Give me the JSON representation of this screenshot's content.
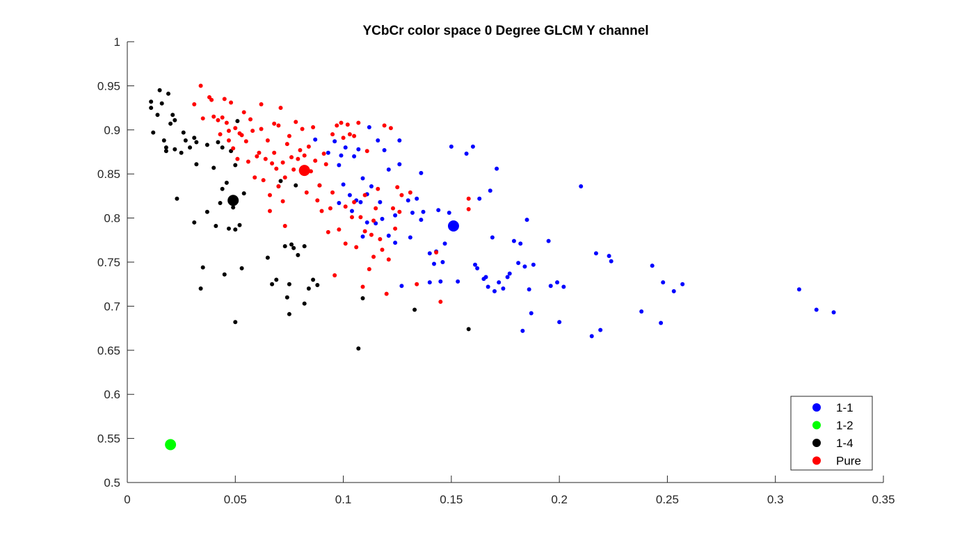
{
  "chart_data": {
    "type": "scatter",
    "title": "YCbCr color space 0 Degree GLCM Y channel",
    "xlabel": "",
    "ylabel": "",
    "xlim": [
      0,
      0.35
    ],
    "ylim": [
      0.5,
      1
    ],
    "x_ticks": [
      "0",
      "0.05",
      "0.1",
      "0.15",
      "0.2",
      "0.25",
      "0.3",
      "0.35"
    ],
    "y_ticks": [
      "0.5",
      "0.55",
      "0.6",
      "0.65",
      "0.7",
      "0.75",
      "0.8",
      "0.85",
      "0.9",
      "0.95",
      "1"
    ],
    "grid": false,
    "legend_position": "bottom-right",
    "series": [
      {
        "name": "1-1",
        "color": "#0000ff",
        "centroid": [
          0.151,
          0.791
        ],
        "points": [
          [
            0.087,
            0.889
          ],
          [
            0.093,
            0.874
          ],
          [
            0.096,
            0.887
          ],
          [
            0.098,
            0.86
          ],
          [
            0.099,
            0.871
          ],
          [
            0.101,
            0.88
          ],
          [
            0.105,
            0.87
          ],
          [
            0.107,
            0.878
          ],
          [
            0.109,
            0.845
          ],
          [
            0.112,
            0.903
          ],
          [
            0.116,
            0.888
          ],
          [
            0.119,
            0.877
          ],
          [
            0.121,
            0.855
          ],
          [
            0.126,
            0.888
          ],
          [
            0.126,
            0.861
          ],
          [
            0.13,
            0.82
          ],
          [
            0.132,
            0.806
          ],
          [
            0.134,
            0.822
          ],
          [
            0.136,
            0.851
          ],
          [
            0.14,
            0.76
          ],
          [
            0.142,
            0.748
          ],
          [
            0.144,
            0.809
          ],
          [
            0.147,
            0.771
          ],
          [
            0.149,
            0.806
          ],
          [
            0.15,
            0.881
          ],
          [
            0.153,
            0.728
          ],
          [
            0.157,
            0.873
          ],
          [
            0.16,
            0.881
          ],
          [
            0.161,
            0.747
          ],
          [
            0.162,
            0.743
          ],
          [
            0.163,
            0.822
          ],
          [
            0.165,
            0.731
          ],
          [
            0.166,
            0.733
          ],
          [
            0.167,
            0.722
          ],
          [
            0.168,
            0.831
          ],
          [
            0.169,
            0.778
          ],
          [
            0.17,
            0.717
          ],
          [
            0.171,
            0.856
          ],
          [
            0.172,
            0.727
          ],
          [
            0.174,
            0.72
          ],
          [
            0.176,
            0.733
          ],
          [
            0.177,
            0.737
          ],
          [
            0.179,
            0.774
          ],
          [
            0.181,
            0.749
          ],
          [
            0.182,
            0.771
          ],
          [
            0.183,
            0.672
          ],
          [
            0.184,
            0.745
          ],
          [
            0.185,
            0.798
          ],
          [
            0.186,
            0.719
          ],
          [
            0.187,
            0.692
          ],
          [
            0.188,
            0.747
          ],
          [
            0.195,
            0.774
          ],
          [
            0.196,
            0.723
          ],
          [
            0.199,
            0.727
          ],
          [
            0.2,
            0.682
          ],
          [
            0.202,
            0.722
          ],
          [
            0.21,
            0.836
          ],
          [
            0.215,
            0.666
          ],
          [
            0.217,
            0.76
          ],
          [
            0.219,
            0.673
          ],
          [
            0.223,
            0.757
          ],
          [
            0.224,
            0.751
          ],
          [
            0.238,
            0.694
          ],
          [
            0.243,
            0.746
          ],
          [
            0.247,
            0.681
          ],
          [
            0.248,
            0.727
          ],
          [
            0.253,
            0.717
          ],
          [
            0.257,
            0.725
          ],
          [
            0.311,
            0.719
          ],
          [
            0.319,
            0.696
          ],
          [
            0.327,
            0.693
          ],
          [
            0.104,
            0.808
          ],
          [
            0.108,
            0.818
          ],
          [
            0.111,
            0.795
          ],
          [
            0.115,
            0.794
          ],
          [
            0.117,
            0.818
          ],
          [
            0.121,
            0.78
          ],
          [
            0.124,
            0.803
          ],
          [
            0.127,
            0.723
          ],
          [
            0.136,
            0.798
          ],
          [
            0.137,
            0.807
          ],
          [
            0.14,
            0.727
          ],
          [
            0.143,
            0.762
          ],
          [
            0.145,
            0.728
          ],
          [
            0.146,
            0.75
          ],
          [
            0.124,
            0.772
          ],
          [
            0.118,
            0.799
          ],
          [
            0.106,
            0.82
          ],
          [
            0.109,
            0.779
          ],
          [
            0.113,
            0.836
          ],
          [
            0.1,
            0.838
          ],
          [
            0.103,
            0.826
          ],
          [
            0.098,
            0.817
          ],
          [
            0.111,
            0.827
          ],
          [
            0.131,
            0.778
          ]
        ]
      },
      {
        "name": "1-2",
        "color": "#00ff00",
        "centroid": [
          0.02,
          0.543
        ],
        "points": []
      },
      {
        "name": "1-4",
        "color": "#000000",
        "centroid": [
          0.049,
          0.82
        ],
        "points": [
          [
            0.011,
            0.932
          ],
          [
            0.011,
            0.925
          ],
          [
            0.012,
            0.897
          ],
          [
            0.014,
            0.917
          ],
          [
            0.015,
            0.945
          ],
          [
            0.016,
            0.93
          ],
          [
            0.017,
            0.888
          ],
          [
            0.018,
            0.88
          ],
          [
            0.018,
            0.876
          ],
          [
            0.019,
            0.941
          ],
          [
            0.02,
            0.907
          ],
          [
            0.021,
            0.917
          ],
          [
            0.022,
            0.911
          ],
          [
            0.022,
            0.878
          ],
          [
            0.023,
            0.822
          ],
          [
            0.025,
            0.874
          ],
          [
            0.026,
            0.897
          ],
          [
            0.027,
            0.888
          ],
          [
            0.029,
            0.88
          ],
          [
            0.031,
            0.891
          ],
          [
            0.031,
            0.795
          ],
          [
            0.032,
            0.861
          ],
          [
            0.032,
            0.886
          ],
          [
            0.034,
            0.72
          ],
          [
            0.035,
            0.744
          ],
          [
            0.037,
            0.883
          ],
          [
            0.037,
            0.807
          ],
          [
            0.04,
            0.857
          ],
          [
            0.041,
            0.791
          ],
          [
            0.042,
            0.886
          ],
          [
            0.043,
            0.817
          ],
          [
            0.044,
            0.833
          ],
          [
            0.044,
            0.88
          ],
          [
            0.045,
            0.736
          ],
          [
            0.046,
            0.84
          ],
          [
            0.047,
            0.788
          ],
          [
            0.048,
            0.876
          ],
          [
            0.049,
            0.812
          ],
          [
            0.05,
            0.787
          ],
          [
            0.05,
            0.682
          ],
          [
            0.05,
            0.86
          ],
          [
            0.051,
            0.91
          ],
          [
            0.052,
            0.792
          ],
          [
            0.053,
            0.743
          ],
          [
            0.054,
            0.828
          ],
          [
            0.065,
            0.755
          ],
          [
            0.067,
            0.725
          ],
          [
            0.069,
            0.73
          ],
          [
            0.07,
            0.836
          ],
          [
            0.071,
            0.842
          ],
          [
            0.073,
            0.768
          ],
          [
            0.074,
            0.71
          ],
          [
            0.075,
            0.691
          ],
          [
            0.075,
            0.725
          ],
          [
            0.076,
            0.77
          ],
          [
            0.077,
            0.766
          ],
          [
            0.078,
            0.837
          ],
          [
            0.079,
            0.758
          ],
          [
            0.082,
            0.768
          ],
          [
            0.082,
            0.703
          ],
          [
            0.084,
            0.72
          ],
          [
            0.086,
            0.73
          ],
          [
            0.088,
            0.724
          ],
          [
            0.089,
            0.837
          ],
          [
            0.107,
            0.652
          ],
          [
            0.109,
            0.709
          ],
          [
            0.133,
            0.696
          ],
          [
            0.158,
            0.674
          ]
        ]
      },
      {
        "name": "Pure",
        "color": "#ff0000",
        "centroid": [
          0.082,
          0.854
        ],
        "points": [
          [
            0.031,
            0.929
          ],
          [
            0.034,
            0.95
          ],
          [
            0.035,
            0.913
          ],
          [
            0.038,
            0.937
          ],
          [
            0.039,
            0.934
          ],
          [
            0.04,
            0.915
          ],
          [
            0.042,
            0.911
          ],
          [
            0.043,
            0.895
          ],
          [
            0.044,
            0.914
          ],
          [
            0.045,
            0.935
          ],
          [
            0.046,
            0.908
          ],
          [
            0.047,
            0.899
          ],
          [
            0.047,
            0.888
          ],
          [
            0.048,
            0.931
          ],
          [
            0.049,
            0.879
          ],
          [
            0.05,
            0.902
          ],
          [
            0.051,
            0.867
          ],
          [
            0.052,
            0.896
          ],
          [
            0.053,
            0.894
          ],
          [
            0.054,
            0.92
          ],
          [
            0.055,
            0.887
          ],
          [
            0.056,
            0.864
          ],
          [
            0.057,
            0.912
          ],
          [
            0.058,
            0.899
          ],
          [
            0.059,
            0.846
          ],
          [
            0.06,
            0.87
          ],
          [
            0.061,
            0.874
          ],
          [
            0.062,
            0.929
          ],
          [
            0.062,
            0.901
          ],
          [
            0.063,
            0.843
          ],
          [
            0.064,
            0.867
          ],
          [
            0.065,
            0.888
          ],
          [
            0.066,
            0.826
          ],
          [
            0.066,
            0.808
          ],
          [
            0.067,
            0.862
          ],
          [
            0.068,
            0.907
          ],
          [
            0.068,
            0.874
          ],
          [
            0.069,
            0.856
          ],
          [
            0.07,
            0.905
          ],
          [
            0.07,
            0.836
          ],
          [
            0.071,
            0.925
          ],
          [
            0.072,
            0.863
          ],
          [
            0.072,
            0.819
          ],
          [
            0.073,
            0.791
          ],
          [
            0.073,
            0.846
          ],
          [
            0.074,
            0.884
          ],
          [
            0.075,
            0.893
          ],
          [
            0.076,
            0.869
          ],
          [
            0.077,
            0.855
          ],
          [
            0.078,
            0.909
          ],
          [
            0.079,
            0.867
          ],
          [
            0.08,
            0.877
          ],
          [
            0.081,
            0.901
          ],
          [
            0.082,
            0.871
          ],
          [
            0.083,
            0.829
          ],
          [
            0.084,
            0.881
          ],
          [
            0.085,
            0.853
          ],
          [
            0.086,
            0.903
          ],
          [
            0.087,
            0.865
          ],
          [
            0.088,
            0.82
          ],
          [
            0.089,
            0.837
          ],
          [
            0.09,
            0.808
          ],
          [
            0.091,
            0.873
          ],
          [
            0.092,
            0.861
          ],
          [
            0.093,
            0.784
          ],
          [
            0.094,
            0.811
          ],
          [
            0.095,
            0.895
          ],
          [
            0.096,
            0.735
          ],
          [
            0.097,
            0.905
          ],
          [
            0.098,
            0.787
          ],
          [
            0.099,
            0.908
          ],
          [
            0.1,
            0.891
          ],
          [
            0.101,
            0.771
          ],
          [
            0.102,
            0.906
          ],
          [
            0.103,
            0.895
          ],
          [
            0.104,
            0.801
          ],
          [
            0.105,
            0.893
          ],
          [
            0.106,
            0.767
          ],
          [
            0.107,
            0.908
          ],
          [
            0.108,
            0.801
          ],
          [
            0.109,
            0.722
          ],
          [
            0.11,
            0.785
          ],
          [
            0.111,
            0.876
          ],
          [
            0.112,
            0.742
          ],
          [
            0.113,
            0.781
          ],
          [
            0.114,
            0.756
          ],
          [
            0.115,
            0.811
          ],
          [
            0.116,
            0.833
          ],
          [
            0.117,
            0.776
          ],
          [
            0.118,
            0.764
          ],
          [
            0.119,
            0.905
          ],
          [
            0.12,
            0.714
          ],
          [
            0.121,
            0.753
          ],
          [
            0.122,
            0.902
          ],
          [
            0.123,
            0.811
          ],
          [
            0.124,
            0.788
          ],
          [
            0.125,
            0.835
          ],
          [
            0.126,
            0.807
          ],
          [
            0.127,
            0.826
          ],
          [
            0.131,
            0.829
          ],
          [
            0.134,
            0.725
          ],
          [
            0.143,
            0.761
          ],
          [
            0.145,
            0.705
          ],
          [
            0.158,
            0.822
          ],
          [
            0.158,
            0.81
          ],
          [
            0.095,
            0.829
          ],
          [
            0.101,
            0.813
          ],
          [
            0.105,
            0.818
          ],
          [
            0.11,
            0.826
          ],
          [
            0.114,
            0.797
          ]
        ]
      }
    ]
  }
}
